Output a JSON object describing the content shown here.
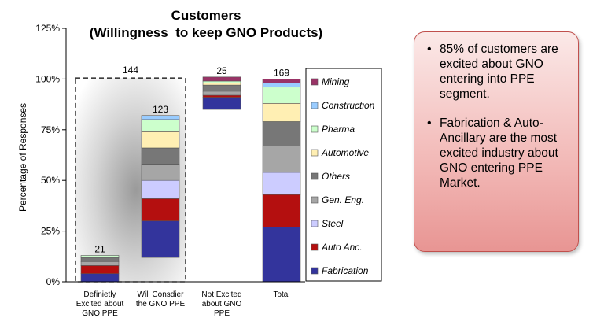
{
  "chart_data": {
    "type": "bar",
    "subtype": "stacked",
    "title": "Customers",
    "subtitle": "(Willingness  to keep GNO Products)",
    "ylabel": "Percentage of Responses",
    "xlabel": "",
    "ylim": [
      0,
      125
    ],
    "yticks": [
      "0%",
      "25%",
      "50%",
      "75%",
      "100%",
      "125%"
    ],
    "grid": false,
    "legend_position": "right",
    "categories": [
      "Definietly Excited about GNO PPE",
      "Will Consdier the GNO PPE",
      "Not Excited about GNO PPE",
      "Total"
    ],
    "category_lines": [
      [
        "Definietly",
        "Excited about",
        "GNO PPE"
      ],
      [
        "Will Consdier",
        "the GNO PPE"
      ],
      [
        "Not Excited",
        "about GNO",
        "PPE"
      ],
      [
        "Total"
      ]
    ],
    "bar_bases": [
      0,
      12,
      85,
      0
    ],
    "totals": [
      "21",
      "123",
      "25",
      "169"
    ],
    "group_label": "144",
    "series": [
      {
        "name": "Fabrication",
        "color": "#33349c",
        "values": [
          4,
          18,
          6,
          27
        ]
      },
      {
        "name": "Auto Anc.",
        "color": "#b40f0f",
        "values": [
          4,
          11,
          1,
          16
        ]
      },
      {
        "name": "Steel",
        "color": "#ccccff",
        "values": [
          0,
          9,
          0,
          11
        ]
      },
      {
        "name": "Gen. Eng.",
        "color": "#a6a6a6",
        "values": [
          2,
          8,
          2,
          13
        ]
      },
      {
        "name": "Others",
        "color": "#777777",
        "values": [
          2,
          8,
          3,
          12
        ]
      },
      {
        "name": "Automotive",
        "color": "#ffefb3",
        "values": [
          0,
          8,
          1,
          9
        ]
      },
      {
        "name": "Pharma",
        "color": "#ccffcc",
        "values": [
          1,
          6,
          1,
          8
        ]
      },
      {
        "name": "Construction",
        "color": "#99ccff",
        "values": [
          0,
          2,
          0,
          2
        ]
      },
      {
        "name": "Mining",
        "color": "#993366",
        "values": [
          0,
          0,
          2,
          2
        ]
      }
    ]
  },
  "callout": {
    "points": [
      "85% of customers are excited about GNO entering into PPE segment.",
      "Fabrication & Auto-Ancillary are the most excited industry about GNO entering PPE Market."
    ]
  }
}
